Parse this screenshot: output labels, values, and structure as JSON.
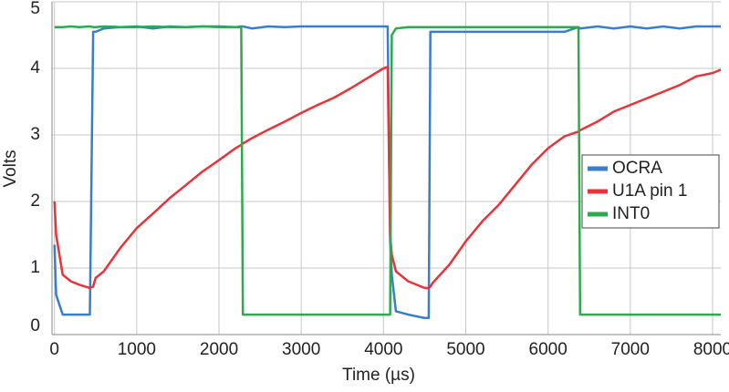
{
  "chart_data": {
    "type": "line",
    "x_label": "Time (µs)",
    "y_label": "Volts",
    "x": [
      0,
      20,
      100,
      200,
      300,
      430,
      470,
      500,
      600,
      800,
      1000,
      1200,
      1400,
      1600,
      1800,
      2000,
      2200,
      2270,
      2290,
      2400,
      2600,
      2800,
      3000,
      3200,
      3400,
      3600,
      3800,
      4000,
      4050,
      4080,
      4100,
      4150,
      4300,
      4500,
      4550,
      4570,
      4600,
      4800,
      5000,
      5200,
      5400,
      5600,
      5800,
      6000,
      6200,
      6370,
      6390,
      6600,
      6800,
      7000,
      7200,
      7400,
      7600,
      7800,
      8000,
      8100
    ],
    "series": [
      {
        "name": "OCRA",
        "color": "#3a7dc9",
        "values": [
          1.35,
          0.6,
          0.3,
          0.3,
          0.3,
          0.3,
          4.55,
          4.55,
          4.6,
          4.62,
          4.63,
          4.6,
          4.63,
          4.62,
          4.63,
          4.63,
          4.62,
          4.63,
          4.63,
          4.6,
          4.63,
          4.62,
          4.63,
          4.63,
          4.63,
          4.63,
          4.63,
          4.63,
          4.63,
          1.4,
          0.9,
          0.35,
          0.3,
          0.25,
          0.25,
          4.55,
          4.55,
          4.55,
          4.55,
          4.55,
          4.55,
          4.55,
          4.55,
          4.55,
          4.55,
          4.62,
          4.6,
          4.63,
          4.6,
          4.63,
          4.6,
          4.63,
          4.6,
          4.63,
          4.63,
          4.63
        ]
      },
      {
        "name": "U1A pin 1",
        "color": "#e8333a",
        "values": [
          2.0,
          1.5,
          0.9,
          0.8,
          0.75,
          0.7,
          0.72,
          0.85,
          0.95,
          1.3,
          1.6,
          1.82,
          2.05,
          2.25,
          2.45,
          2.62,
          2.8,
          2.85,
          2.87,
          2.95,
          3.08,
          3.2,
          3.33,
          3.45,
          3.56,
          3.7,
          3.85,
          4.0,
          4.02,
          1.5,
          1.2,
          0.95,
          0.8,
          0.7,
          0.7,
          0.72,
          0.78,
          1.05,
          1.4,
          1.7,
          1.95,
          2.25,
          2.55,
          2.8,
          2.98,
          3.05,
          3.07,
          3.2,
          3.35,
          3.45,
          3.55,
          3.65,
          3.75,
          3.88,
          3.93,
          3.98
        ]
      },
      {
        "name": "INT0",
        "color": "#2fa84f",
        "values": [
          4.62,
          4.62,
          4.62,
          4.63,
          4.62,
          4.63,
          4.62,
          4.62,
          4.63,
          4.62,
          4.62,
          4.63,
          4.62,
          4.62,
          4.63,
          4.62,
          4.62,
          4.62,
          0.3,
          0.3,
          0.3,
          0.3,
          0.3,
          0.3,
          0.3,
          0.3,
          0.3,
          0.3,
          0.3,
          0.3,
          4.5,
          4.6,
          4.62,
          4.62,
          4.62,
          4.62,
          4.62,
          4.62,
          4.62,
          4.62,
          4.62,
          4.62,
          4.62,
          4.62,
          4.62,
          4.62,
          0.3,
          0.3,
          0.3,
          0.3,
          0.3,
          0.3,
          0.3,
          0.3,
          0.3,
          0.3
        ]
      }
    ],
    "xlim": [
      -30,
      8100
    ],
    "xticks": [
      0,
      1000,
      2000,
      3000,
      4000,
      5000,
      6000,
      7000,
      8000
    ],
    "ylim": [
      0,
      5
    ],
    "yticks": [
      0,
      1,
      2,
      3,
      4,
      5
    ],
    "grid": true,
    "legend": "right"
  }
}
